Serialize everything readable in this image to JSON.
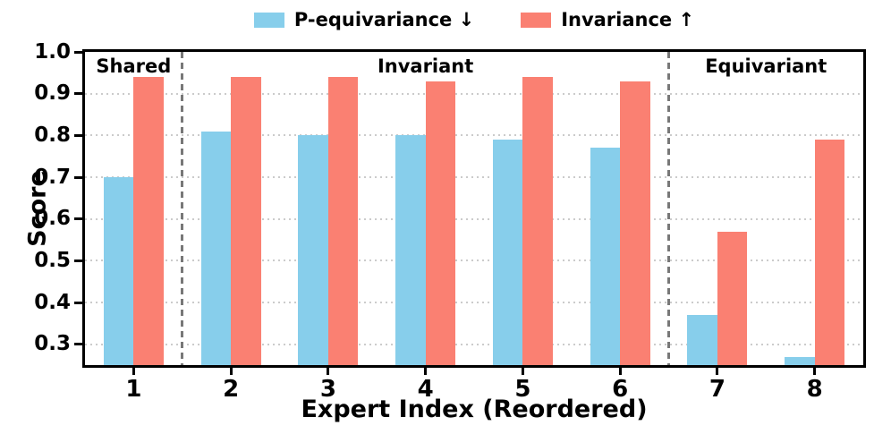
{
  "chart_data": {
    "type": "bar",
    "title": "",
    "xlabel": "Expert Index (Reordered)",
    "ylabel": "Score",
    "categories": [
      "1",
      "2",
      "3",
      "4",
      "5",
      "6",
      "7",
      "8"
    ],
    "series": [
      {
        "name": "P-equivariance ↓",
        "color": "#87CEEB",
        "values": [
          0.7,
          0.81,
          0.8,
          0.8,
          0.79,
          0.77,
          0.37,
          0.27
        ]
      },
      {
        "name": "Invariance ↑",
        "color": "#FA8072",
        "values": [
          0.94,
          0.94,
          0.94,
          0.93,
          0.94,
          0.93,
          0.57,
          0.79
        ]
      }
    ],
    "ylim": [
      0.25,
      1.0
    ],
    "yticks": [
      1.0,
      0.9,
      0.8,
      0.7,
      0.6,
      0.5,
      0.4,
      0.3
    ],
    "grid": {
      "axis": "y",
      "style": "dotted",
      "color": "#cbcbcb"
    },
    "legend": {
      "position": "top-center",
      "frame": false
    },
    "sections": [
      {
        "label": "Shared",
        "center_x": 1.0
      },
      {
        "label": "Invariant",
        "center_x": 4.0
      },
      {
        "label": "Equivariant",
        "center_x": 7.5
      }
    ],
    "dividers_x": [
      1.5,
      6.5
    ],
    "divider_color": "#787878"
  }
}
